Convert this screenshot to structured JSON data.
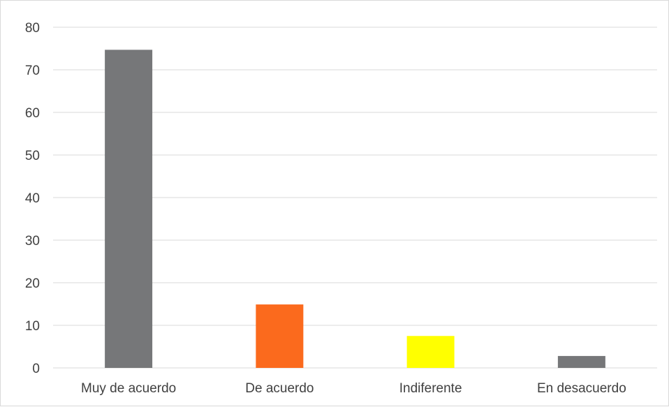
{
  "chart_data": {
    "type": "bar",
    "title": "",
    "xlabel": "",
    "ylabel": "",
    "categories": [
      "Muy de acuerdo",
      "De acuerdo",
      "Indiferente",
      "En desacuerdo"
    ],
    "values": [
      74.7,
      14.9,
      7.5,
      2.8
    ],
    "colors": [
      "#767779",
      "#fb6a1d",
      "#ffff00",
      "#767779"
    ],
    "ylim": [
      0,
      80
    ],
    "yticks": [
      0,
      10,
      20,
      30,
      40,
      50,
      60,
      70,
      80
    ],
    "grid": true,
    "legend": "none"
  }
}
